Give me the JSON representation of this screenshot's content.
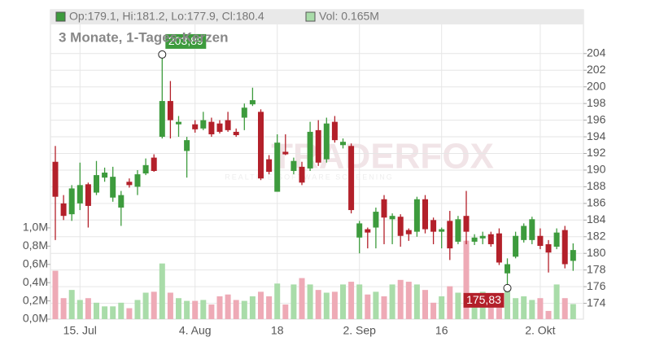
{
  "chart_data": {
    "type": "candlestick",
    "subtitle": "3 Monate, 1-Tages-Kerzen",
    "header": {
      "ohlc": "Op:179.1, Hi:181.2, Lo:177.9, Cl:180.4",
      "volume": "Vol: 0.165M"
    },
    "watermark": "TRADERFOX",
    "watermark_tagline": "REALTIME SOFTWARE SCREENING",
    "categories": [
      null,
      null,
      null,
      "15. Jul",
      null,
      null,
      null,
      null,
      null,
      null,
      null,
      null,
      null,
      null,
      null,
      null,
      null,
      "4. Aug",
      null,
      null,
      null,
      null,
      null,
      null,
      null,
      null,
      null,
      "18",
      null,
      null,
      null,
      null,
      null,
      null,
      null,
      null,
      null,
      "2. Sep",
      null,
      null,
      null,
      null,
      null,
      null,
      null,
      null,
      null,
      "16",
      null,
      null,
      null,
      null,
      null,
      null,
      null,
      null,
      null,
      null,
      null,
      "2. Okt",
      null,
      null,
      null,
      null
    ],
    "open": [
      191.0,
      186.0,
      184.7,
      186.0,
      188.3,
      187.3,
      189.1,
      186.7,
      185.5,
      188.6,
      188.0,
      189.6,
      191.5,
      194.0,
      198.3,
      195.5,
      192.3,
      195.5,
      195.0,
      195.8,
      195.6,
      196.0,
      194.6,
      196.3,
      197.9,
      197.0,
      191.3,
      187.4,
      192.2,
      189.9,
      190.4,
      190.2,
      194.8,
      191.3,
      195.8,
      193.0,
      192.9,
      181.9,
      182.9,
      183.1,
      186.5,
      184.1,
      184.4,
      182.8,
      182.6,
      186.5,
      184.0,
      182.6,
      183.9,
      181.4,
      184.5,
      181.4,
      181.8,
      182.3,
      182.4,
      177.6,
      179.6,
      181.6,
      181.6,
      182.1,
      181.1,
      180.8,
      182.8,
      179.1
    ],
    "high": [
      192.9,
      187.0,
      188.2,
      190.9,
      188.5,
      191.1,
      190.3,
      190.4,
      187.5,
      189.0,
      190.0,
      191.4,
      191.9,
      203.89,
      200.7,
      196.5,
      194.0,
      196.0,
      197.0,
      196.3,
      196.0,
      197.0,
      195.0,
      198.0,
      199.9,
      197.3,
      191.8,
      194.3,
      194.3,
      191.5,
      191.0,
      195.8,
      196.0,
      196.3,
      196.5,
      193.8,
      193.2,
      183.9,
      183.1,
      185.5,
      187.0,
      184.8,
      184.7,
      183.0,
      186.8,
      187.0,
      184.3,
      183.1,
      185.1,
      184.5,
      187.5,
      182.3,
      182.6,
      182.6,
      183.0,
      179.4,
      182.6,
      183.6,
      184.4,
      183.0,
      181.6,
      183.0,
      183.3,
      181.2
    ],
    "low": [
      181.6,
      184.0,
      183.9,
      185.2,
      183.1,
      187.0,
      188.6,
      186.2,
      183.3,
      187.9,
      187.0,
      189.4,
      189.8,
      193.8,
      193.8,
      194.0,
      189.1,
      194.5,
      194.8,
      194.0,
      194.4,
      194.6,
      194.0,
      194.8,
      197.7,
      188.8,
      189.5,
      187.4,
      191.8,
      189.5,
      188.2,
      189.9,
      190.5,
      190.9,
      193.3,
      192.6,
      184.8,
      180.0,
      180.6,
      180.6,
      181.1,
      181.1,
      180.8,
      181.5,
      182.0,
      182.4,
      181.1,
      180.6,
      179.2,
      181.1,
      181.1,
      181.0,
      181.1,
      180.8,
      178.6,
      175.83,
      179.4,
      181.3,
      181.1,
      180.5,
      177.7,
      180.5,
      178.2,
      177.9
    ],
    "close": [
      186.8,
      184.5,
      187.8,
      188.2,
      185.7,
      189.4,
      189.7,
      189.2,
      187.0,
      188.2,
      189.5,
      190.6,
      189.9,
      198.3,
      196.0,
      195.8,
      193.6,
      194.9,
      196.0,
      194.3,
      194.6,
      194.8,
      194.2,
      197.5,
      198.4,
      189.0,
      189.8,
      193.3,
      191.9,
      191.1,
      188.5,
      194.6,
      190.9,
      195.6,
      193.6,
      193.4,
      185.2,
      183.6,
      182.5,
      185.0,
      184.3,
      184.5,
      182.1,
      182.3,
      186.5,
      182.9,
      182.6,
      182.9,
      180.6,
      184.1,
      182.6,
      181.9,
      182.1,
      181.1,
      178.9,
      178.7,
      182.1,
      183.3,
      184.1,
      180.9,
      180.1,
      182.5,
      178.7,
      180.4
    ],
    "volume": [
      0.53,
      0.23,
      0.32,
      0.21,
      0.23,
      0.18,
      0.14,
      0.14,
      0.18,
      0.12,
      0.21,
      0.29,
      0.3,
      0.61,
      0.29,
      0.23,
      0.2,
      0.2,
      0.21,
      0.16,
      0.25,
      0.27,
      0.21,
      0.2,
      0.25,
      0.3,
      0.25,
      0.39,
      0.16,
      0.38,
      0.45,
      0.38,
      0.32,
      0.29,
      0.3,
      0.38,
      0.41,
      0.38,
      0.27,
      0.3,
      0.25,
      0.38,
      0.43,
      0.41,
      0.38,
      0.32,
      0.18,
      0.25,
      0.36,
      0.29,
      0.86,
      0.25,
      0.3,
      0.27,
      0.23,
      0.34,
      0.23,
      0.25,
      0.21,
      0.23,
      0.09,
      0.38,
      0.23,
      0.165
    ],
    "ylim": [
      172.1,
      207.5
    ],
    "yticks": [
      174,
      176,
      178,
      180,
      182,
      184,
      186,
      188,
      190,
      192,
      194,
      196,
      198,
      200,
      202,
      204
    ],
    "y2lim": [
      0,
      3.23
    ],
    "y2ticks": [
      {
        "value": 0,
        "label": "0,0M"
      },
      {
        "value": 0.2,
        "label": "0,2M"
      },
      {
        "value": 0.4,
        "label": "0,4M"
      },
      {
        "value": 0.6,
        "label": "0,6M"
      },
      {
        "value": 0.8,
        "label": "0,8M"
      },
      {
        "value": 1.0,
        "label": "1,0M"
      }
    ],
    "annotations": {
      "high": {
        "value": 203.89,
        "label": "203,89"
      },
      "low": {
        "value": 175.83,
        "label": "175,83"
      }
    },
    "up_color": "#3d9b3d",
    "down_color": "#b3202a",
    "volume_up_color": "#a9dca9",
    "volume_down_color": "#eeaab6",
    "grid": true
  }
}
